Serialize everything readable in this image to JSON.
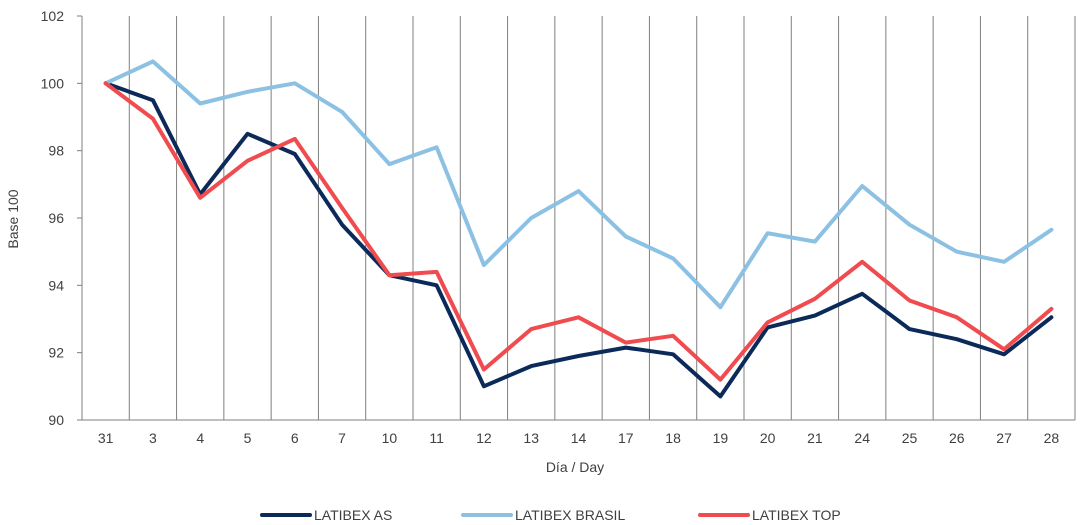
{
  "chart_data": {
    "type": "line",
    "title": "",
    "xlabel": "Día / Day",
    "ylabel": "Base 100",
    "ylim": [
      90,
      102
    ],
    "yticks": [
      90,
      92,
      94,
      96,
      98,
      100,
      102
    ],
    "categories": [
      "31",
      "3",
      "4",
      "5",
      "6",
      "7",
      "10",
      "11",
      "12",
      "13",
      "14",
      "17",
      "18",
      "19",
      "20",
      "21",
      "24",
      "25",
      "26",
      "27",
      "28"
    ],
    "grid": "vertical",
    "legend_position": "bottom",
    "series": [
      {
        "name": "LATIBEX AS",
        "color": "#0b2a59",
        "values": [
          100,
          99.5,
          96.7,
          98.5,
          97.9,
          95.8,
          94.3,
          94.0,
          91.0,
          91.6,
          91.9,
          92.15,
          91.95,
          90.7,
          92.75,
          93.1,
          93.75,
          92.7,
          92.4,
          91.95,
          93.05
        ]
      },
      {
        "name": "LATIBEX BRASIL",
        "color": "#8cc1e3",
        "values": [
          100,
          100.65,
          99.4,
          99.75,
          100.0,
          99.15,
          97.6,
          98.1,
          94.6,
          96.0,
          96.8,
          95.45,
          94.8,
          93.35,
          95.55,
          95.3,
          96.95,
          95.8,
          95.0,
          94.7,
          95.65
        ]
      },
      {
        "name": "LATIBEX TOP",
        "color": "#f04b4e",
        "values": [
          100,
          98.95,
          96.6,
          97.7,
          98.35,
          96.3,
          94.3,
          94.4,
          91.5,
          92.7,
          93.05,
          92.3,
          92.5,
          91.2,
          92.9,
          93.6,
          94.7,
          93.55,
          93.05,
          92.1,
          93.3
        ]
      }
    ]
  }
}
